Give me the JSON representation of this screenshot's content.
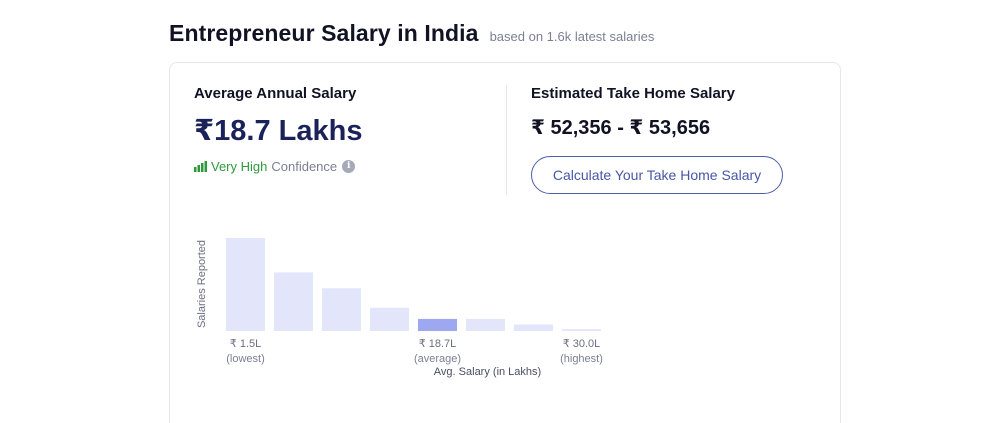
{
  "header": {
    "title": "Entrepreneur Salary in India",
    "subtitle": "based on 1.6k latest salaries"
  },
  "average": {
    "label": "Average Annual Salary",
    "value": "₹18.7 Lakhs",
    "confidence_level": "Very High",
    "confidence_text": "Confidence",
    "info_icon": "i"
  },
  "take_home": {
    "label": "Estimated Take Home Salary",
    "value": "₹ 52,356 - ₹ 53,656",
    "button_label": "Calculate Your Take Home Salary"
  },
  "colors": {
    "bar": "#e3e6fa",
    "bar_highlight": "#9ea8f0",
    "confidence_green": "#2e9b3b",
    "button_border": "#4d5fa8"
  },
  "chart_data": {
    "type": "bar",
    "ylabel": "Salaries Reported",
    "xlabel": "Avg. Salary (in Lakhs)",
    "values": [
      100,
      63,
      46,
      25,
      13,
      13,
      7,
      2
    ],
    "highlight_index": 4,
    "tick_labels": [
      {
        "index": 0,
        "value": "₹ 1.5L",
        "sub": "(lowest)"
      },
      {
        "index": 4,
        "value": "₹ 18.7L",
        "sub": "(average)"
      },
      {
        "index": 7,
        "value": "₹ 30.0L",
        "sub": "(highest)"
      }
    ]
  }
}
